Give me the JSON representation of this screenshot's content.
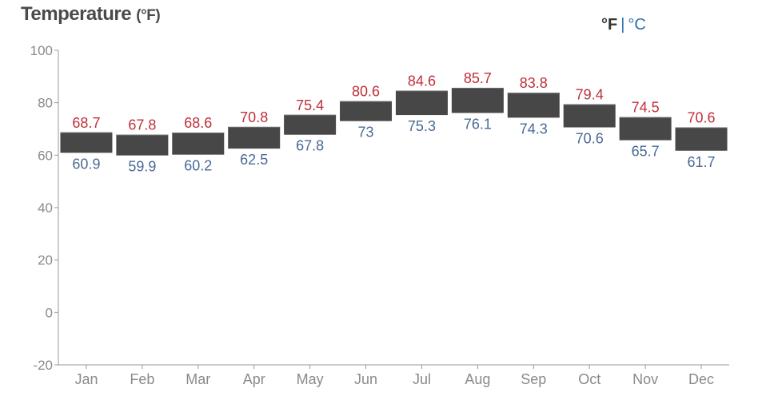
{
  "header": {
    "title": "Temperature",
    "title_unit": "(°F)",
    "unit_f": "°F",
    "unit_sep": "|",
    "unit_c": "°C"
  },
  "colors": {
    "high_label": "#c0303a",
    "low_label": "#4a6a96",
    "bar": "#474747",
    "axis": "#999999",
    "tick_text": "#8a8a8a",
    "link": "#2a6fb2"
  },
  "chart_data": {
    "type": "bar",
    "subtype": "floating-range",
    "categories": [
      "Jan",
      "Feb",
      "Mar",
      "Apr",
      "May",
      "Jun",
      "Jul",
      "Aug",
      "Sep",
      "Oct",
      "Nov",
      "Dec"
    ],
    "series": [
      {
        "values": [
          68.7,
          67.8,
          68.6,
          70.8,
          75.4,
          80.6,
          84.6,
          85.7,
          83.8,
          79.4,
          74.5,
          70.6
        ]
      },
      {
        "values": [
          60.9,
          59.9,
          60.2,
          62.5,
          67.8,
          73,
          75.3,
          76.1,
          74.3,
          70.6,
          65.7,
          61.7
        ]
      }
    ],
    "high_labels": [
      "68.7",
      "67.8",
      "68.6",
      "70.8",
      "75.4",
      "80.6",
      "84.6",
      "85.7",
      "83.8",
      "79.4",
      "74.5",
      "70.6"
    ],
    "low_labels": [
      "60.9",
      "59.9",
      "60.2",
      "62.5",
      "67.8",
      "73",
      "75.3",
      "76.1",
      "74.3",
      "70.6",
      "65.7",
      "61.7"
    ],
    "ylim": [
      -20,
      100
    ],
    "yticks": [
      100,
      80,
      60,
      40,
      20,
      0,
      -20
    ],
    "ytick_labels": [
      "100",
      "80",
      "60",
      "40",
      "20",
      "0",
      "-20"
    ],
    "grid": false,
    "legend": "none"
  }
}
